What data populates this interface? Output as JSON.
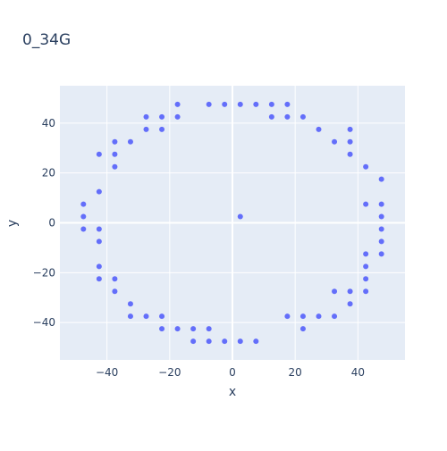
{
  "chart_data": {
    "type": "scatter",
    "title": "0_34G",
    "xlabel": "x",
    "ylabel": "y",
    "xlim": [
      -55,
      55
    ],
    "ylim": [
      -55,
      55
    ],
    "xticks": [
      -40,
      -20,
      0,
      20,
      40
    ],
    "yticks": [
      -40,
      -20,
      0,
      20,
      40
    ],
    "grid": true,
    "legend": "none",
    "plot_background": "#e5ecf6",
    "grid_color": "#ffffff",
    "marker_color": "#636efa",
    "series": [
      {
        "x": [
          -47.5,
          -47.5,
          -47.5,
          -42.5,
          -42.5,
          -42.5,
          -42.5,
          -42.5,
          -42.5,
          -37.5,
          -37.5,
          -37.5,
          -37.5,
          -37.5,
          -32.5,
          -32.5,
          -32.5,
          -27.5,
          -27.5,
          -27.5,
          -22.5,
          -22.5,
          -22.5,
          -22.5,
          -17.5,
          -17.5,
          -17.5,
          -12.5,
          -12.5,
          -7.5,
          -7.5,
          -7.5,
          -2.5,
          -2.5,
          2.5,
          2.5,
          2.5,
          7.5,
          7.5,
          12.5,
          12.5,
          17.5,
          17.5,
          17.5,
          22.5,
          22.5,
          22.5,
          27.5,
          27.5,
          32.5,
          32.5,
          32.5,
          37.5,
          37.5,
          37.5,
          37.5,
          37.5,
          42.5,
          42.5,
          42.5,
          42.5,
          42.5,
          42.5,
          47.5,
          47.5,
          47.5,
          47.5,
          47.5,
          47.5
        ],
        "y": [
          7.5,
          2.5,
          -2.5,
          27.5,
          12.5,
          -2.5,
          -7.5,
          -17.5,
          -22.5,
          32.5,
          27.5,
          22.5,
          -22.5,
          -27.5,
          32.5,
          -32.5,
          -37.5,
          42.5,
          37.5,
          -37.5,
          42.5,
          37.5,
          -37.5,
          -42.5,
          47.5,
          42.5,
          -42.5,
          -42.5,
          -47.5,
          47.5,
          -42.5,
          -47.5,
          47.5,
          -47.5,
          47.5,
          2.5,
          -47.5,
          47.5,
          -47.5,
          47.5,
          42.5,
          47.5,
          42.5,
          -37.5,
          42.5,
          -37.5,
          -42.5,
          37.5,
          -37.5,
          32.5,
          -27.5,
          -37.5,
          37.5,
          32.5,
          27.5,
          -27.5,
          -32.5,
          22.5,
          7.5,
          -12.5,
          -17.5,
          -22.5,
          -27.5,
          17.5,
          7.5,
          2.5,
          -2.5,
          -7.5,
          -12.5
        ]
      }
    ]
  }
}
